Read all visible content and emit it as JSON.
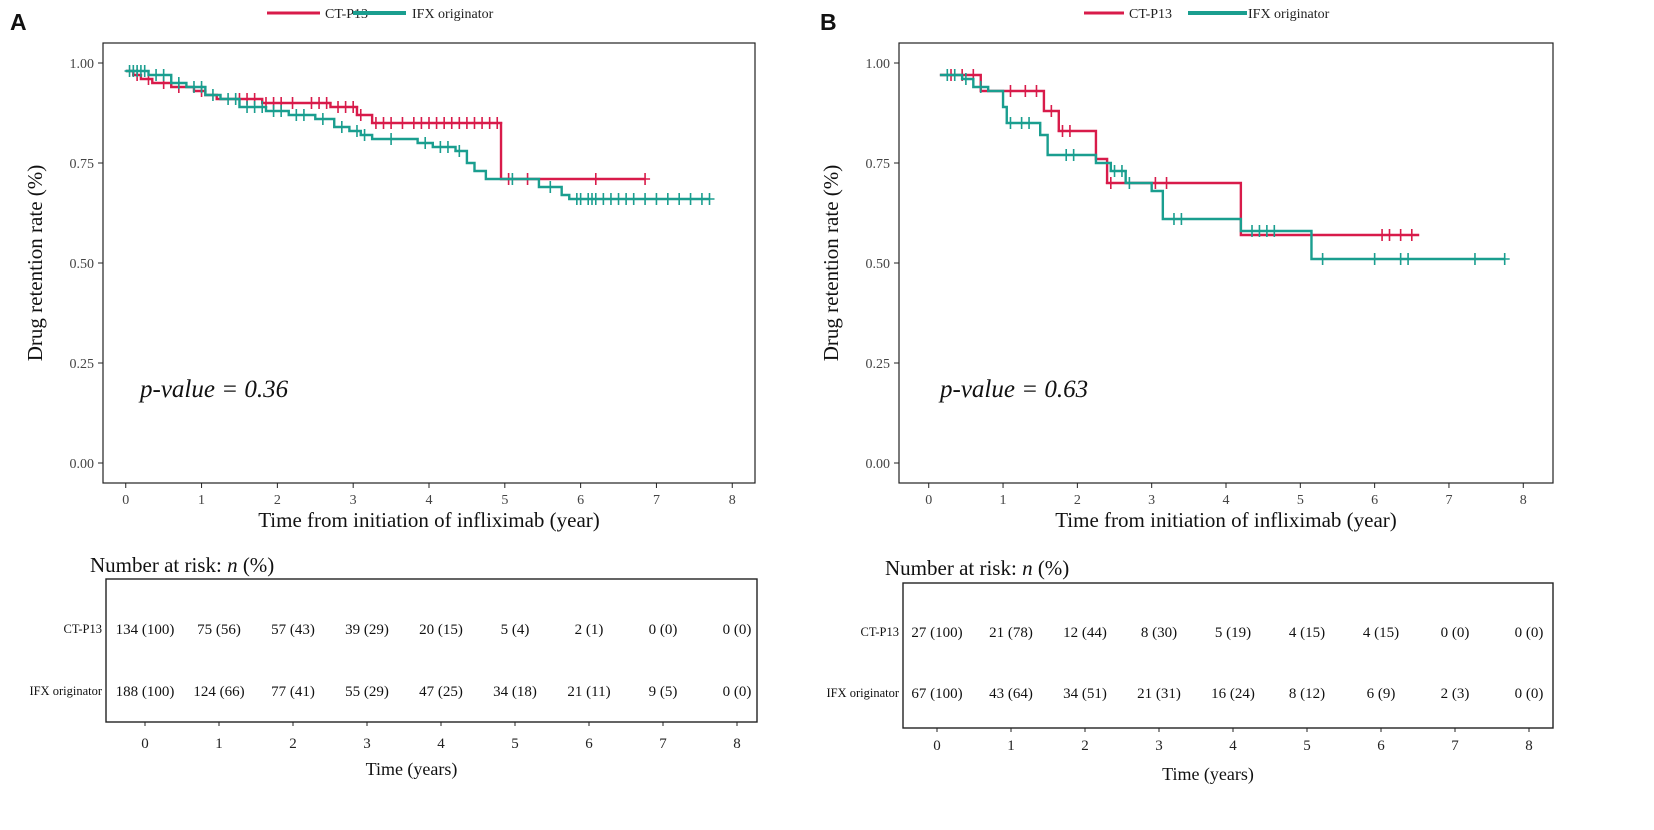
{
  "figure": {
    "colors": {
      "ct": "#d81b4a",
      "ifx": "#1a9e8f",
      "axis": "#222222",
      "tick_text": "#444444"
    },
    "legend": {
      "ct_label": "CT-P13",
      "ifx_label": "IFX originator"
    }
  },
  "chart_data": [
    {
      "panel": "A",
      "type": "line",
      "subtype": "kaplan-meier step",
      "legend": {
        "ct_label": "CT-P13",
        "ifx_label": "IFX originator"
      },
      "xlabel": "Time from initiation of infliximab (year)",
      "ylabel": "Drug retention rate (%)",
      "xlim": [
        -0.3,
        8.3
      ],
      "ylim": [
        -0.05,
        1.05
      ],
      "x_ticks": [
        0,
        1,
        2,
        3,
        4,
        5,
        6,
        7,
        8
      ],
      "x_tick_labels": [
        "0",
        "1",
        "2",
        "3",
        "4",
        "5",
        "6",
        "7",
        "8"
      ],
      "y_ticks": [
        0,
        0.25,
        0.5,
        0.75,
        1
      ],
      "y_tick_labels": [
        "0.00",
        "0.25",
        "0.50",
        "0.75",
        "1.00"
      ],
      "annotation": "p-value = 0.36",
      "series": [
        {
          "name": "CT-P13",
          "color": "#d81b4a",
          "steps": [
            [
              0,
              0.98
            ],
            [
              0.1,
              0.97
            ],
            [
              0.2,
              0.96
            ],
            [
              0.35,
              0.95
            ],
            [
              0.6,
              0.94
            ],
            [
              0.9,
              0.93
            ],
            [
              1.05,
              0.92
            ],
            [
              1.2,
              0.91
            ],
            [
              1.4,
              0.91
            ],
            [
              1.8,
              0.9
            ],
            [
              2.3,
              0.9
            ],
            [
              2.7,
              0.89
            ],
            [
              3.05,
              0.87
            ],
            [
              3.25,
              0.85
            ],
            [
              4.95,
              0.71
            ],
            [
              6.85,
              0.71
            ]
          ],
          "censored": [
            [
              0.15,
              0.97
            ],
            [
              0.3,
              0.96
            ],
            [
              0.5,
              0.95
            ],
            [
              0.7,
              0.94
            ],
            [
              1.0,
              0.93
            ],
            [
              1.5,
              0.91
            ],
            [
              1.6,
              0.91
            ],
            [
              1.7,
              0.91
            ],
            [
              1.85,
              0.9
            ],
            [
              1.95,
              0.9
            ],
            [
              2.05,
              0.9
            ],
            [
              2.2,
              0.9
            ],
            [
              2.45,
              0.9
            ],
            [
              2.55,
              0.9
            ],
            [
              2.65,
              0.9
            ],
            [
              2.8,
              0.89
            ],
            [
              2.9,
              0.89
            ],
            [
              3.0,
              0.89
            ],
            [
              3.1,
              0.87
            ],
            [
              3.3,
              0.85
            ],
            [
              3.4,
              0.85
            ],
            [
              3.5,
              0.85
            ],
            [
              3.65,
              0.85
            ],
            [
              3.8,
              0.85
            ],
            [
              3.9,
              0.85
            ],
            [
              4.0,
              0.85
            ],
            [
              4.1,
              0.85
            ],
            [
              4.2,
              0.85
            ],
            [
              4.3,
              0.85
            ],
            [
              4.4,
              0.85
            ],
            [
              4.5,
              0.85
            ],
            [
              4.6,
              0.85
            ],
            [
              4.7,
              0.85
            ],
            [
              4.8,
              0.85
            ],
            [
              4.9,
              0.85
            ],
            [
              5.05,
              0.71
            ],
            [
              5.3,
              0.71
            ],
            [
              6.2,
              0.71
            ],
            [
              6.85,
              0.71
            ]
          ]
        },
        {
          "name": "IFX originator",
          "color": "#1a9e8f",
          "steps": [
            [
              0,
              0.98
            ],
            [
              0.3,
              0.97
            ],
            [
              0.6,
              0.95
            ],
            [
              0.8,
              0.94
            ],
            [
              1.05,
              0.92
            ],
            [
              1.25,
              0.91
            ],
            [
              1.5,
              0.89
            ],
            [
              1.85,
              0.88
            ],
            [
              2.15,
              0.87
            ],
            [
              2.5,
              0.86
            ],
            [
              2.75,
              0.84
            ],
            [
              2.95,
              0.83
            ],
            [
              3.1,
              0.82
            ],
            [
              3.25,
              0.81
            ],
            [
              3.6,
              0.81
            ],
            [
              3.85,
              0.8
            ],
            [
              4.05,
              0.79
            ],
            [
              4.35,
              0.78
            ],
            [
              4.5,
              0.75
            ],
            [
              4.6,
              0.73
            ],
            [
              4.75,
              0.71
            ],
            [
              5.0,
              0.71
            ],
            [
              5.45,
              0.69
            ],
            [
              5.75,
              0.67
            ],
            [
              5.85,
              0.66
            ],
            [
              7.7,
              0.66
            ]
          ],
          "censored": [
            [
              0.05,
              0.98
            ],
            [
              0.1,
              0.98
            ],
            [
              0.15,
              0.98
            ],
            [
              0.2,
              0.98
            ],
            [
              0.25,
              0.98
            ],
            [
              0.4,
              0.97
            ],
            [
              0.5,
              0.97
            ],
            [
              0.7,
              0.95
            ],
            [
              0.9,
              0.94
            ],
            [
              1.0,
              0.94
            ],
            [
              1.15,
              0.92
            ],
            [
              1.35,
              0.91
            ],
            [
              1.45,
              0.91
            ],
            [
              1.6,
              0.89
            ],
            [
              1.7,
              0.89
            ],
            [
              1.8,
              0.89
            ],
            [
              1.95,
              0.88
            ],
            [
              2.05,
              0.88
            ],
            [
              2.25,
              0.87
            ],
            [
              2.35,
              0.87
            ],
            [
              2.6,
              0.86
            ],
            [
              2.85,
              0.84
            ],
            [
              3.05,
              0.83
            ],
            [
              3.15,
              0.82
            ],
            [
              3.5,
              0.81
            ],
            [
              3.95,
              0.8
            ],
            [
              4.15,
              0.79
            ],
            [
              4.25,
              0.79
            ],
            [
              4.4,
              0.78
            ],
            [
              5.1,
              0.71
            ],
            [
              5.6,
              0.69
            ],
            [
              5.95,
              0.66
            ],
            [
              6.0,
              0.66
            ],
            [
              6.1,
              0.66
            ],
            [
              6.15,
              0.66
            ],
            [
              6.2,
              0.66
            ],
            [
              6.3,
              0.66
            ],
            [
              6.4,
              0.66
            ],
            [
              6.5,
              0.66
            ],
            [
              6.6,
              0.66
            ],
            [
              6.7,
              0.66
            ],
            [
              6.85,
              0.66
            ],
            [
              7.0,
              0.66
            ],
            [
              7.15,
              0.66
            ],
            [
              7.3,
              0.66
            ],
            [
              7.45,
              0.66
            ],
            [
              7.6,
              0.66
            ],
            [
              7.7,
              0.66
            ]
          ]
        }
      ],
      "risk_table": {
        "title_prefix": "Number at risk: ",
        "title_n": "n",
        "title_suffix": " (%)",
        "xlabel": "Time (years)",
        "times": [
          "0",
          "1",
          "2",
          "3",
          "4",
          "5",
          "6",
          "7",
          "8"
        ],
        "rows": [
          {
            "label": "CT-P13",
            "values": [
              "134 (100)",
              "75 (56)",
              "57 (43)",
              "39 (29)",
              "20 (15)",
              "5 (4)",
              "2 (1)",
              "0 (0)",
              "0 (0)"
            ]
          },
          {
            "label": "IFX originator",
            "values": [
              "188 (100)",
              "124 (66)",
              "77 (41)",
              "55 (29)",
              "47 (25)",
              "34 (18)",
              "21 (11)",
              "9 (5)",
              "0 (0)"
            ]
          }
        ]
      }
    },
    {
      "panel": "B",
      "type": "line",
      "subtype": "kaplan-meier step",
      "legend": {
        "ct_label": "CT-P13",
        "ifx_label": "IFX originator"
      },
      "xlabel": "Time from initiation of infliximab (year)",
      "ylabel": "Drug retention rate (%)",
      "xlim": [
        -0.4,
        8.4
      ],
      "ylim": [
        -0.05,
        1.05
      ],
      "x_ticks": [
        0,
        1,
        2,
        3,
        4,
        5,
        6,
        7,
        8
      ],
      "x_tick_labels": [
        "0",
        "1",
        "2",
        "3",
        "4",
        "5",
        "6",
        "7",
        "8"
      ],
      "y_ticks": [
        0,
        0.25,
        0.5,
        0.75,
        1
      ],
      "y_tick_labels": [
        "0.00",
        "0.25",
        "0.50",
        "0.75",
        "1.00"
      ],
      "annotation": "p-value = 0.63",
      "series": [
        {
          "name": "CT-P13",
          "color": "#d81b4a",
          "steps": [
            [
              0.15,
              0.97
            ],
            [
              0.7,
              0.93
            ],
            [
              1.55,
              0.88
            ],
            [
              1.75,
              0.83
            ],
            [
              2.25,
              0.76
            ],
            [
              2.4,
              0.7
            ],
            [
              4.2,
              0.57
            ],
            [
              6.6,
              0.57
            ]
          ],
          "censored": [
            [
              0.3,
              0.97
            ],
            [
              0.45,
              0.97
            ],
            [
              0.6,
              0.97
            ],
            [
              1.1,
              0.93
            ],
            [
              1.3,
              0.93
            ],
            [
              1.45,
              0.93
            ],
            [
              1.65,
              0.88
            ],
            [
              1.8,
              0.83
            ],
            [
              1.9,
              0.83
            ],
            [
              2.45,
              0.7
            ],
            [
              3.05,
              0.7
            ],
            [
              3.2,
              0.7
            ],
            [
              6.1,
              0.57
            ],
            [
              6.2,
              0.57
            ],
            [
              6.35,
              0.57
            ],
            [
              6.5,
              0.57
            ]
          ]
        },
        {
          "name": "IFX originator",
          "color": "#1a9e8f",
          "steps": [
            [
              0.15,
              0.97
            ],
            [
              0.45,
              0.96
            ],
            [
              0.6,
              0.94
            ],
            [
              0.8,
              0.93
            ],
            [
              1.0,
              0.89
            ],
            [
              1.05,
              0.85
            ],
            [
              1.5,
              0.82
            ],
            [
              1.6,
              0.77
            ],
            [
              2.05,
              0.77
            ],
            [
              2.25,
              0.75
            ],
            [
              2.45,
              0.73
            ],
            [
              2.65,
              0.7
            ],
            [
              3.0,
              0.68
            ],
            [
              3.15,
              0.61
            ],
            [
              4.2,
              0.58
            ],
            [
              5.15,
              0.51
            ],
            [
              7.75,
              0.51
            ]
          ],
          "censored": [
            [
              0.25,
              0.97
            ],
            [
              0.35,
              0.97
            ],
            [
              0.5,
              0.96
            ],
            [
              0.7,
              0.94
            ],
            [
              1.1,
              0.85
            ],
            [
              1.25,
              0.85
            ],
            [
              1.35,
              0.85
            ],
            [
              1.85,
              0.77
            ],
            [
              1.95,
              0.77
            ],
            [
              2.5,
              0.73
            ],
            [
              2.6,
              0.73
            ],
            [
              2.7,
              0.7
            ],
            [
              3.3,
              0.61
            ],
            [
              3.4,
              0.61
            ],
            [
              4.35,
              0.58
            ],
            [
              4.45,
              0.58
            ],
            [
              4.55,
              0.58
            ],
            [
              4.65,
              0.58
            ],
            [
              5.3,
              0.51
            ],
            [
              6.0,
              0.51
            ],
            [
              6.35,
              0.51
            ],
            [
              6.45,
              0.51
            ],
            [
              7.35,
              0.51
            ],
            [
              7.75,
              0.51
            ]
          ]
        }
      ],
      "risk_table": {
        "title_prefix": "Number at risk: ",
        "title_n": "n",
        "title_suffix": " (%)",
        "xlabel": "Time (years)",
        "times": [
          "0",
          "1",
          "2",
          "3",
          "4",
          "5",
          "6",
          "7",
          "8"
        ],
        "rows": [
          {
            "label": "CT-P13",
            "values": [
              "27 (100)",
              "21 (78)",
              "12 (44)",
              "8 (30)",
              "5 (19)",
              "4 (15)",
              "4 (15)",
              "0 (0)",
              "0 (0)"
            ]
          },
          {
            "label": "IFX originator",
            "values": [
              "67 (100)",
              "43 (64)",
              "34 (51)",
              "21 (31)",
              "16 (24)",
              "8 (12)",
              "6 (9)",
              "2 (3)",
              "0 (0)"
            ]
          }
        ]
      }
    }
  ]
}
